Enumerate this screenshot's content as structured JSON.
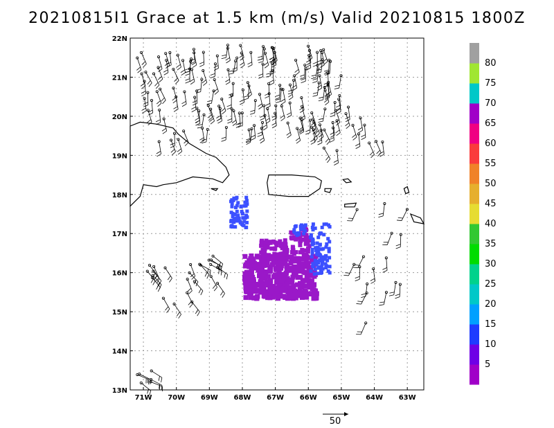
{
  "title": "20210815I1 Grace at 1.5 km (m/s) Valid 20210815 1800Z",
  "chart_data": {
    "type": "map",
    "x_ticks": [
      "71W",
      "70W",
      "69W",
      "68W",
      "67W",
      "66W",
      "65W",
      "64W",
      "63W"
    ],
    "x_values": [
      -71,
      -70,
      -69,
      -68,
      -67,
      -66,
      -65,
      -64,
      -63
    ],
    "y_ticks": [
      "22N",
      "21N",
      "20N",
      "19N",
      "18N",
      "17N",
      "16N",
      "15N",
      "14N",
      "13N"
    ],
    "y_values": [
      22,
      21,
      20,
      19,
      18,
      17,
      16,
      15,
      14,
      13
    ],
    "xlim": [
      -71.4,
      -62.5
    ],
    "ylim": [
      13,
      22
    ],
    "grid": true,
    "colorbar": {
      "labels": [
        "5",
        "10",
        "15",
        "20",
        "25",
        "30",
        "35",
        "40",
        "45",
        "50",
        "55",
        "60",
        "65",
        "70",
        "75",
        "80"
      ],
      "colors": [
        "#a000c8",
        "#6e00e6",
        "#1e3cff",
        "#00a0ff",
        "#00c8c8",
        "#00d28c",
        "#00dc00",
        "#32c832",
        "#e6dc32",
        "#e6af2d",
        "#f08228",
        "#fa3c3c",
        "#f00082",
        "#a000c8",
        "#00c8c8",
        "#a0e632",
        "#a0a0a0"
      ]
    },
    "reference_vector": {
      "label": "50",
      "units": "m/s"
    },
    "wind_regions": [
      {
        "name": "purple core south of Hispaniola/PR",
        "lon": [
          -68.3,
          -65.8
        ],
        "lat": [
          15.6,
          16.7
        ],
        "speed": 5
      },
      {
        "name": "blue band near Mona Passage",
        "lon": [
          -68.4,
          -67.9
        ],
        "lat": [
          17.2,
          17.9
        ],
        "speed": 10
      },
      {
        "name": "blue band east",
        "lon": [
          -66.0,
          -65.4
        ],
        "lat": [
          16.2,
          17.3
        ],
        "speed": 10
      }
    ]
  }
}
